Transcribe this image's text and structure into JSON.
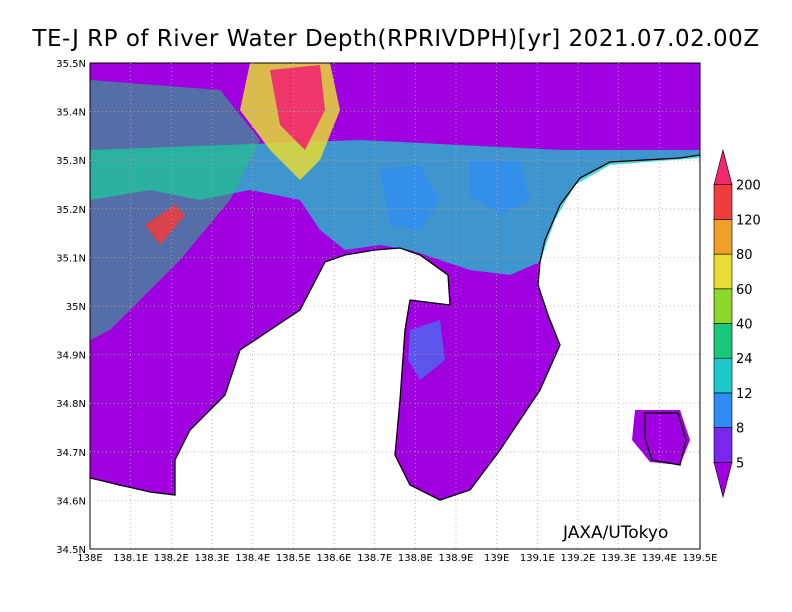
{
  "title": "TE-J RP of River Water Depth(RPRIVDPH)[yr] 2021.07.02.00Z",
  "credit": "JAXA/UTokyo",
  "map": {
    "lon_range": [
      138.0,
      139.5
    ],
    "lat_range": [
      34.5,
      35.5
    ],
    "x_ticks": [
      "138E",
      "138.1E",
      "138.2E",
      "138.3E",
      "138.4E",
      "138.5E",
      "138.6E",
      "138.7E",
      "138.8E",
      "138.9E",
      "139E",
      "139.1E",
      "139.2E",
      "139.3E",
      "139.4E",
      "139.5E"
    ],
    "y_ticks": [
      "34.5N",
      "34.6N",
      "34.7N",
      "34.8N",
      "34.9N",
      "35N",
      "35.1N",
      "35.2N",
      "35.3N",
      "35.4N",
      "35.5N"
    ],
    "grid": true
  },
  "colorbar": {
    "labels": [
      "5",
      "8",
      "12",
      "24",
      "40",
      "60",
      "80",
      "120",
      "200"
    ],
    "colors": [
      "#a000e0",
      "#7a28f0",
      "#2f8cf5",
      "#1fc8c8",
      "#19c878",
      "#8cd82a",
      "#e6dc32",
      "#f0a028",
      "#f03c3c",
      "#f0286e"
    ]
  }
}
